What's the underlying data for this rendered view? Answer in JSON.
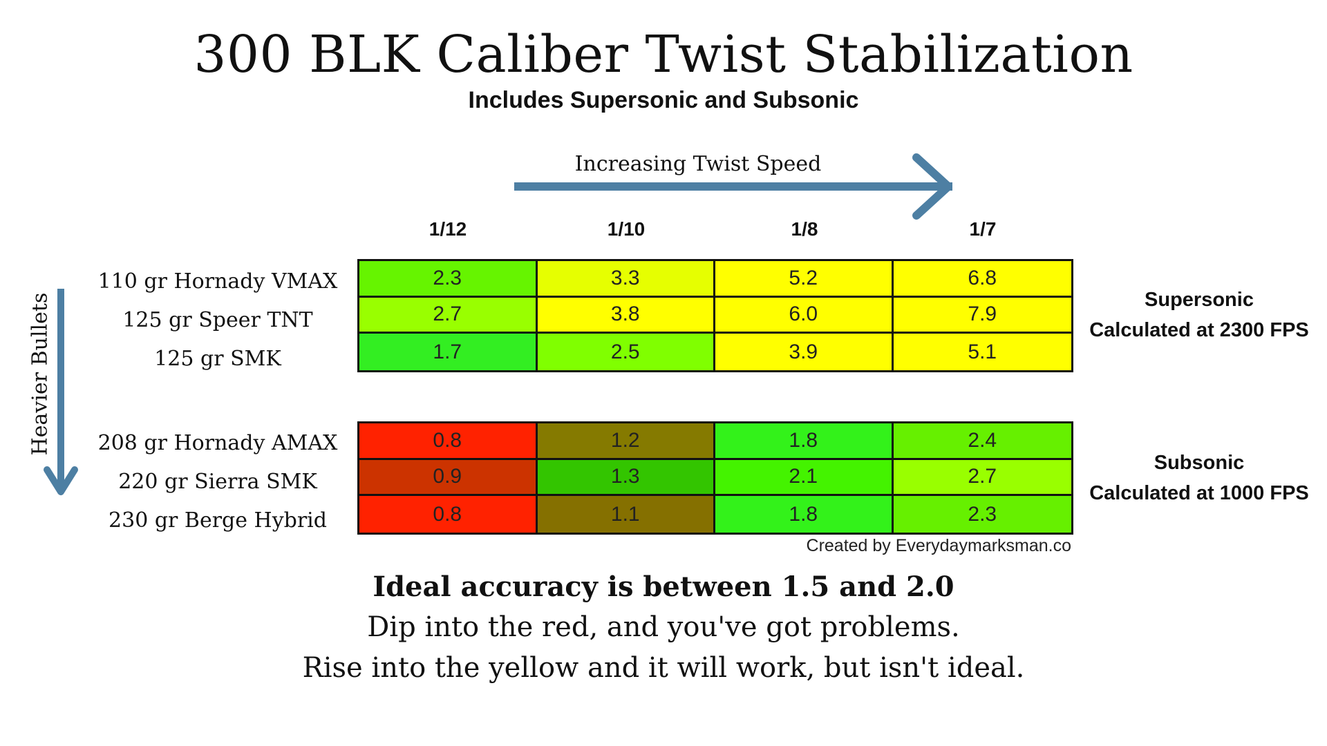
{
  "title": "300 BLK Caliber Twist Stabilization",
  "subtitle": "Includes Supersonic and Subsonic",
  "twist_arrow_label": "Increasing Twist Speed",
  "weight_arrow_label": "Heavier Bullets",
  "colors": {
    "arrow": "#4d7fa3",
    "border": "#111111",
    "red": "#ff2200",
    "dark_red": "#cc3300",
    "olive": "#857a00",
    "dark_green": "#33c500",
    "green": "#33f21a",
    "light_green": "#80ff00",
    "yellow_green": "#ccff00",
    "yellow": "#ffff00"
  },
  "chart_data": {
    "type": "table",
    "columns": [
      "1/12",
      "1/10",
      "1/8",
      "1/7"
    ],
    "groups": [
      {
        "label_lines": [
          "Supersonic",
          "Calculated at 2300 FPS"
        ],
        "rows": [
          {
            "bullet": "110 gr Hornady VMAX",
            "values": [
              "2.3",
              "3.3",
              "5.2",
              "6.8"
            ],
            "colors": [
              "#66f400",
              "#e6ff00",
              "#ffff00",
              "#ffff00"
            ]
          },
          {
            "bullet": "125 gr Speer TNT",
            "values": [
              "2.7",
              "3.8",
              "6.0",
              "7.9"
            ],
            "colors": [
              "#99ff00",
              "#ffff00",
              "#ffff00",
              "#ffff00"
            ]
          },
          {
            "bullet": "125 gr SMK",
            "values": [
              "1.7",
              "2.5",
              "3.9",
              "5.1"
            ],
            "colors": [
              "#33ee22",
              "#80ff00",
              "#ffff00",
              "#ffff00"
            ]
          }
        ]
      },
      {
        "label_lines": [
          "Subsonic",
          "Calculated at 1000 FPS"
        ],
        "rows": [
          {
            "bullet": "208 gr Hornady AMAX",
            "values": [
              "0.8",
              "1.2",
              "1.8",
              "2.4"
            ],
            "colors": [
              "#ff2200",
              "#857a00",
              "#33f21a",
              "#66f000"
            ]
          },
          {
            "bullet": "220 gr Sierra SMK",
            "values": [
              "0.9",
              "1.3",
              "2.1",
              "2.7"
            ],
            "colors": [
              "#cc3300",
              "#33c500",
              "#44f300",
              "#99ff00"
            ]
          },
          {
            "bullet": "230 gr Berge Hybrid",
            "values": [
              "0.8",
              "1.1",
              "1.8",
              "2.3"
            ],
            "colors": [
              "#ff2200",
              "#857000",
              "#33f21a",
              "#66f000"
            ]
          }
        ]
      }
    ]
  },
  "credit": "Created by Everydaymarksman.co",
  "notes": [
    "Ideal accuracy is between 1.5 and 2.0",
    "Dip into the red, and you've got problems.",
    "Rise into the yellow and it will work, but isn't ideal."
  ]
}
